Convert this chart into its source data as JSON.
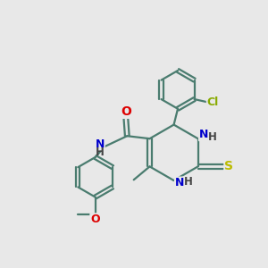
{
  "background_color": "#e8e8e8",
  "bond_color": "#4a7c6f",
  "bond_width": 1.6,
  "atom_colors": {
    "O": "#dd0000",
    "N": "#0000cc",
    "S": "#bbbb00",
    "Cl": "#88aa00",
    "C": "#4a7c6f"
  },
  "figsize": [
    3.0,
    3.0
  ],
  "dpi": 100,
  "xlim": [
    0,
    10
  ],
  "ylim": [
    0,
    10
  ]
}
